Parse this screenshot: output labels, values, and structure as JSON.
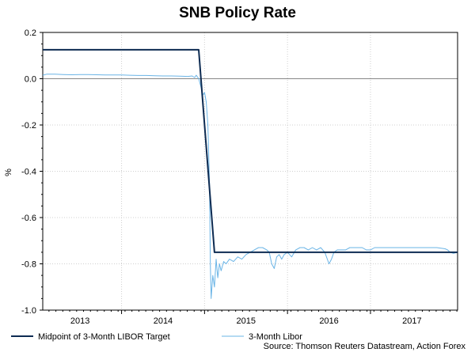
{
  "chart_data": {
    "type": "line",
    "title": "SNB Policy Rate",
    "xlabel": "",
    "ylabel": "%",
    "ylim": [
      -1.0,
      0.2
    ],
    "yticks": [
      0.2,
      0.0,
      -0.2,
      -0.4,
      -0.6,
      -0.8,
      -1.0
    ],
    "ytick_labels": [
      "0.2",
      "0.0",
      "-0.2",
      "-0.4",
      "-0.6",
      "-0.8",
      "-1.0"
    ],
    "xlim": [
      2012.55,
      2017.55
    ],
    "xtick_labels": [
      {
        "label": "2013",
        "x": 2013.0
      },
      {
        "label": "2014",
        "x": 2014.0
      },
      {
        "label": "2015",
        "x": 2015.0
      },
      {
        "label": "2016",
        "x": 2016.0
      },
      {
        "label": "2017",
        "x": 2017.0
      }
    ],
    "year_boundaries": [
      2013.5,
      2014.5,
      2015.5,
      2016.5
    ],
    "zero_line": 0.0,
    "series": [
      {
        "name": "Midpoint of 3-Month LIBOR Target",
        "color": "#0d2b52",
        "width": 2,
        "points": [
          [
            2012.55,
            0.125
          ],
          [
            2014.43,
            0.125
          ],
          [
            2014.62,
            -0.75
          ],
          [
            2017.55,
            -0.75
          ]
        ]
      },
      {
        "name": "3-Month Libor",
        "color": "#6ab4e6",
        "width": 1,
        "points": [
          [
            2012.55,
            0.015
          ],
          [
            2012.6,
            0.02
          ],
          [
            2012.7,
            0.02
          ],
          [
            2012.8,
            0.018
          ],
          [
            2012.9,
            0.017
          ],
          [
            2013.0,
            0.018
          ],
          [
            2013.1,
            0.018
          ],
          [
            2013.2,
            0.017
          ],
          [
            2013.3,
            0.016
          ],
          [
            2013.4,
            0.016
          ],
          [
            2013.5,
            0.016
          ],
          [
            2013.6,
            0.015
          ],
          [
            2013.7,
            0.014
          ],
          [
            2013.8,
            0.014
          ],
          [
            2013.9,
            0.013
          ],
          [
            2014.0,
            0.012
          ],
          [
            2014.1,
            0.012
          ],
          [
            2014.2,
            0.011
          ],
          [
            2014.3,
            0.01
          ],
          [
            2014.35,
            0.012
          ],
          [
            2014.38,
            0.005
          ],
          [
            2014.4,
            0.015
          ],
          [
            2014.43,
            0.0
          ],
          [
            2014.46,
            -0.04
          ],
          [
            2014.48,
            -0.07
          ],
          [
            2014.5,
            -0.06
          ],
          [
            2014.52,
            -0.1
          ],
          [
            2014.54,
            -0.2
          ],
          [
            2014.56,
            -0.45
          ],
          [
            2014.57,
            -0.8
          ],
          [
            2014.58,
            -0.95
          ],
          [
            2014.6,
            -0.85
          ],
          [
            2014.62,
            -0.9
          ],
          [
            2014.64,
            -0.78
          ],
          [
            2014.66,
            -0.86
          ],
          [
            2014.68,
            -0.8
          ],
          [
            2014.7,
            -0.83
          ],
          [
            2014.73,
            -0.79
          ],
          [
            2014.76,
            -0.8
          ],
          [
            2014.8,
            -0.78
          ],
          [
            2014.85,
            -0.79
          ],
          [
            2014.9,
            -0.77
          ],
          [
            2014.95,
            -0.78
          ],
          [
            2015.0,
            -0.76
          ],
          [
            2015.05,
            -0.75
          ],
          [
            2015.1,
            -0.74
          ],
          [
            2015.15,
            -0.73
          ],
          [
            2015.2,
            -0.73
          ],
          [
            2015.25,
            -0.74
          ],
          [
            2015.28,
            -0.75
          ],
          [
            2015.31,
            -0.8
          ],
          [
            2015.34,
            -0.82
          ],
          [
            2015.37,
            -0.77
          ],
          [
            2015.4,
            -0.76
          ],
          [
            2015.43,
            -0.78
          ],
          [
            2015.46,
            -0.76
          ],
          [
            2015.5,
            -0.75
          ],
          [
            2015.55,
            -0.77
          ],
          [
            2015.6,
            -0.74
          ],
          [
            2015.65,
            -0.73
          ],
          [
            2015.7,
            -0.73
          ],
          [
            2015.75,
            -0.74
          ],
          [
            2015.8,
            -0.73
          ],
          [
            2015.85,
            -0.74
          ],
          [
            2015.9,
            -0.73
          ],
          [
            2015.95,
            -0.75
          ],
          [
            2016.0,
            -0.8
          ],
          [
            2016.03,
            -0.78
          ],
          [
            2016.06,
            -0.75
          ],
          [
            2016.1,
            -0.74
          ],
          [
            2016.15,
            -0.74
          ],
          [
            2016.2,
            -0.74
          ],
          [
            2016.25,
            -0.73
          ],
          [
            2016.3,
            -0.73
          ],
          [
            2016.35,
            -0.73
          ],
          [
            2016.4,
            -0.73
          ],
          [
            2016.45,
            -0.74
          ],
          [
            2016.5,
            -0.74
          ],
          [
            2016.55,
            -0.73
          ],
          [
            2016.6,
            -0.73
          ],
          [
            2016.7,
            -0.73
          ],
          [
            2016.8,
            -0.73
          ],
          [
            2016.9,
            -0.73
          ],
          [
            2017.0,
            -0.73
          ],
          [
            2017.1,
            -0.73
          ],
          [
            2017.2,
            -0.73
          ],
          [
            2017.3,
            -0.73
          ],
          [
            2017.4,
            -0.735
          ],
          [
            2017.43,
            -0.74
          ],
          [
            2017.46,
            -0.75
          ],
          [
            2017.5,
            -0.755
          ],
          [
            2017.55,
            -0.75
          ]
        ]
      }
    ],
    "legend": [
      {
        "label": "Midpoint of 3-Month LIBOR Target",
        "color": "#0d2b52"
      },
      {
        "label": "3-Month Libor",
        "color": "#6ab4e6"
      }
    ],
    "legend_position": "bottom-left",
    "source": "Source: Thomson Reuters Datastream, Action Forex"
  }
}
